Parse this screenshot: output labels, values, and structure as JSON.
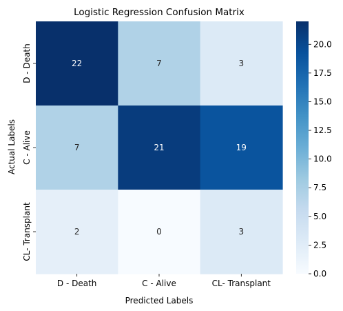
{
  "chart_data": {
    "type": "heatmap",
    "title": "Logistic Regression Confusion Matrix",
    "xlabel": "Predicted Labels",
    "ylabel": "Actual Labels",
    "x_categories": [
      "D - Death",
      "C - Alive",
      "CL- Transplant"
    ],
    "y_categories": [
      "D - Death",
      "C - Alive",
      "CL- Transplant"
    ],
    "values": [
      [
        22,
        7,
        3
      ],
      [
        7,
        21,
        19
      ],
      [
        2,
        0,
        3
      ]
    ],
    "colormap": "Blues",
    "colors": {
      "low": "#f7fbff",
      "high": "#08306b"
    },
    "colorbar": {
      "range": [
        0,
        22
      ],
      "ticks": [
        0.0,
        2.5,
        5.0,
        7.5,
        10.0,
        12.5,
        15.0,
        17.5,
        20.0
      ],
      "tick_labels": [
        "0.0",
        "2.5",
        "5.0",
        "7.5",
        "10.0",
        "12.5",
        "15.0",
        "17.5",
        "20.0"
      ]
    },
    "annotations": true
  }
}
